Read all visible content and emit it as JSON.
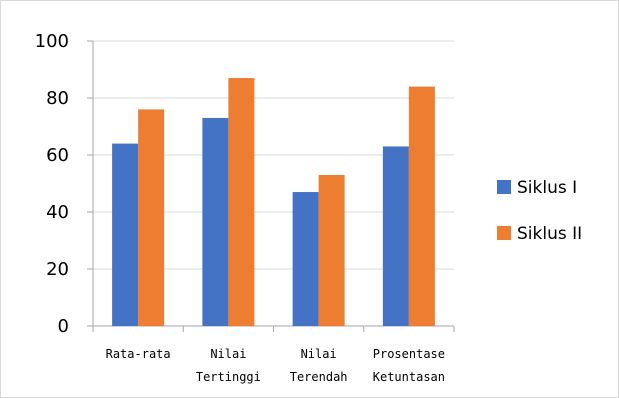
{
  "chart_data": {
    "type": "bar",
    "categories": [
      [
        "Rata-rata"
      ],
      [
        "Nilai",
        "Tertinggi"
      ],
      [
        "Nilai",
        "Terendah"
      ],
      [
        "Prosentase",
        "Ketuntasan"
      ]
    ],
    "series": [
      {
        "name": "Siklus I",
        "values": [
          64,
          73,
          47,
          63
        ],
        "color": "#4472c4"
      },
      {
        "name": "Siklus II",
        "values": [
          76,
          87,
          53,
          84
        ],
        "color": "#ed7d31"
      }
    ],
    "ylim": [
      0,
      100
    ],
    "yticks": [
      0,
      20,
      40,
      60,
      80,
      100
    ],
    "grid": true,
    "legend_position": "right",
    "gridline_color": "#d9d9d9",
    "axis_color": "#a6a6a6"
  }
}
